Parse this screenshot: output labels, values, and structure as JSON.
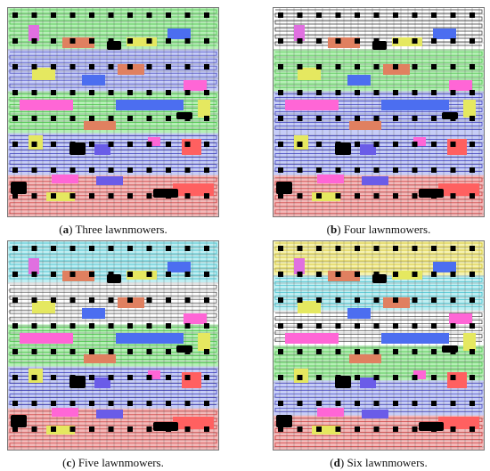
{
  "figure": {
    "panels": [
      {
        "id": "a",
        "letter": "a",
        "caption": "Three lawnmowers.",
        "bands": [
          "#b5efb5",
          "#c6cdf7",
          "#b5efb5",
          "#c6cdf7",
          "#f3b9b9"
        ],
        "path_colors": [
          "#2eb82e",
          "#1f1fb0",
          "#2eb82e",
          "#1f1fb0",
          "#c01010"
        ]
      },
      {
        "id": "b",
        "letter": "b",
        "caption": "Four lawnmowers.",
        "bands": [
          "#ffffff",
          "#b5efb5",
          "#c6cdf7",
          "#c6cdf7",
          "#f3b9b9"
        ],
        "path_colors": [
          "#111111",
          "#2eb82e",
          "#1f1fb0",
          "#1f1fb0",
          "#c01010"
        ]
      },
      {
        "id": "c",
        "letter": "c",
        "caption": "Five lawnmowers.",
        "bands": [
          "#bfeef2",
          "#ffffff",
          "#b5efb5",
          "#c6cdf7",
          "#f3b9b9"
        ],
        "path_colors": [
          "#1ab0c0",
          "#111111",
          "#2eb82e",
          "#1f1fb0",
          "#c01010"
        ]
      },
      {
        "id": "d",
        "letter": "d",
        "caption": "Six lawnmowers.",
        "bands": [
          "#f5f2b0",
          "#bfeef2",
          "#ffffff",
          "#b5efb5",
          "#c6cdf7",
          "#f3b9b9"
        ],
        "path_colors": [
          "#c9b400",
          "#1ab0c0",
          "#111111",
          "#2eb82e",
          "#1f1fb0",
          "#c01010"
        ]
      }
    ]
  }
}
